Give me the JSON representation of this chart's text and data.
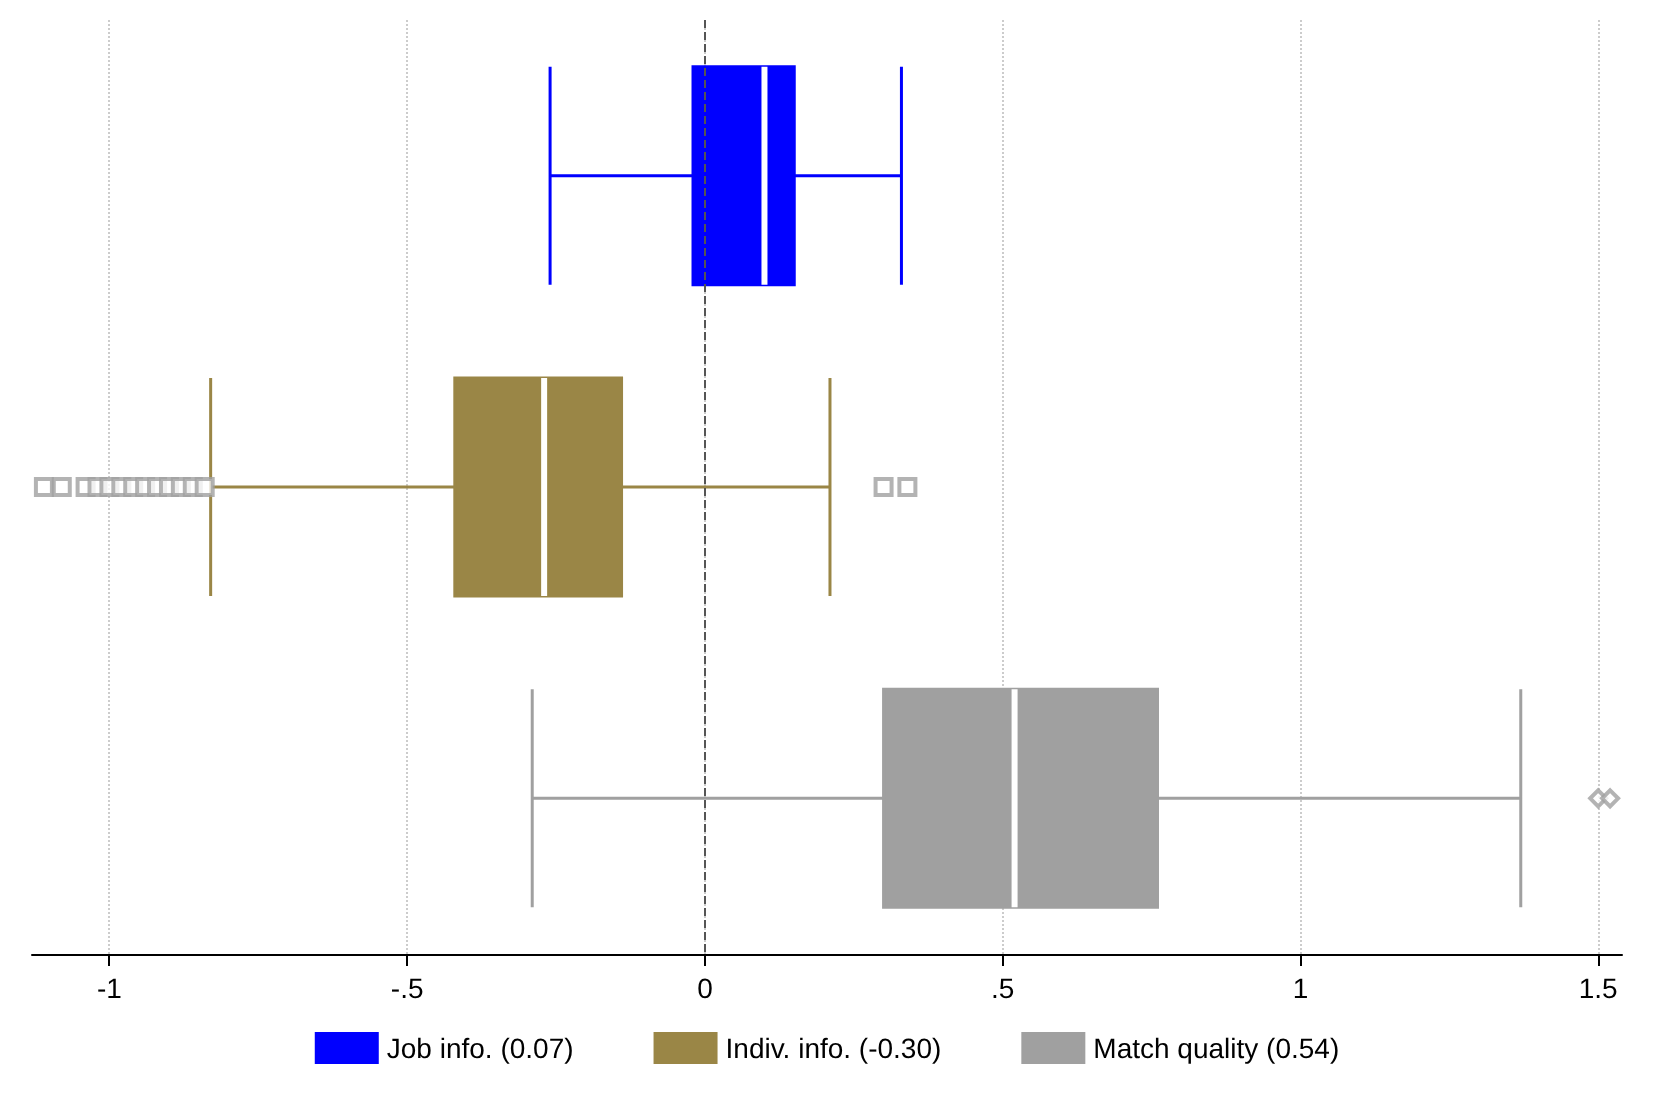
{
  "chart_data": {
    "type": "box",
    "orientation": "horizontal",
    "categories": [
      null,
      null,
      null
    ],
    "series": [
      {
        "name": "Job info. (0.07)",
        "color": "#0000ff",
        "boxes": [
          {
            "low": -0.26,
            "q1": -0.02,
            "median": 0.1,
            "q3": 0.15,
            "high": 0.33
          },
          null,
          null
        ]
      },
      {
        "name": "Indiv. info. (-0.30)",
        "color": "#9a8646",
        "marker": "square",
        "boxes": [
          null,
          {
            "low": -0.83,
            "q1": -0.42,
            "median": -0.27,
            "q3": -0.14,
            "high": 0.21,
            "outliers": [
              -1.11,
              -1.08,
              -1.04,
              -1.02,
              -1.0,
              -0.98,
              -0.96,
              -0.94,
              -0.92,
              -0.9,
              -0.88,
              -0.86,
              -0.84,
              0.3,
              0.34
            ]
          },
          null
        ]
      },
      {
        "name": "Match quality (0.54)",
        "color": "#a0a0a0",
        "marker": "diamond",
        "boxes": [
          null,
          null,
          {
            "low": -0.29,
            "q1": 0.3,
            "median": 0.52,
            "q3": 0.76,
            "high": 1.37,
            "outliers": [
              1.5,
              1.52
            ]
          }
        ]
      }
    ],
    "xlim": [
      -1.13,
      1.54
    ],
    "xticks": [
      {
        "value": -1,
        "label": "-1"
      },
      {
        "value": -0.5,
        "label": "-.5"
      },
      0,
      {
        "value": 0.5,
        "label": ".5"
      },
      1,
      {
        "value": 1.5,
        "label": "1.5"
      }
    ],
    "ref_lines": [
      {
        "axis": "x",
        "value": 0,
        "line_style": "dashed",
        "color": "#555555"
      }
    ],
    "grid": "x",
    "legend": "bottom"
  }
}
